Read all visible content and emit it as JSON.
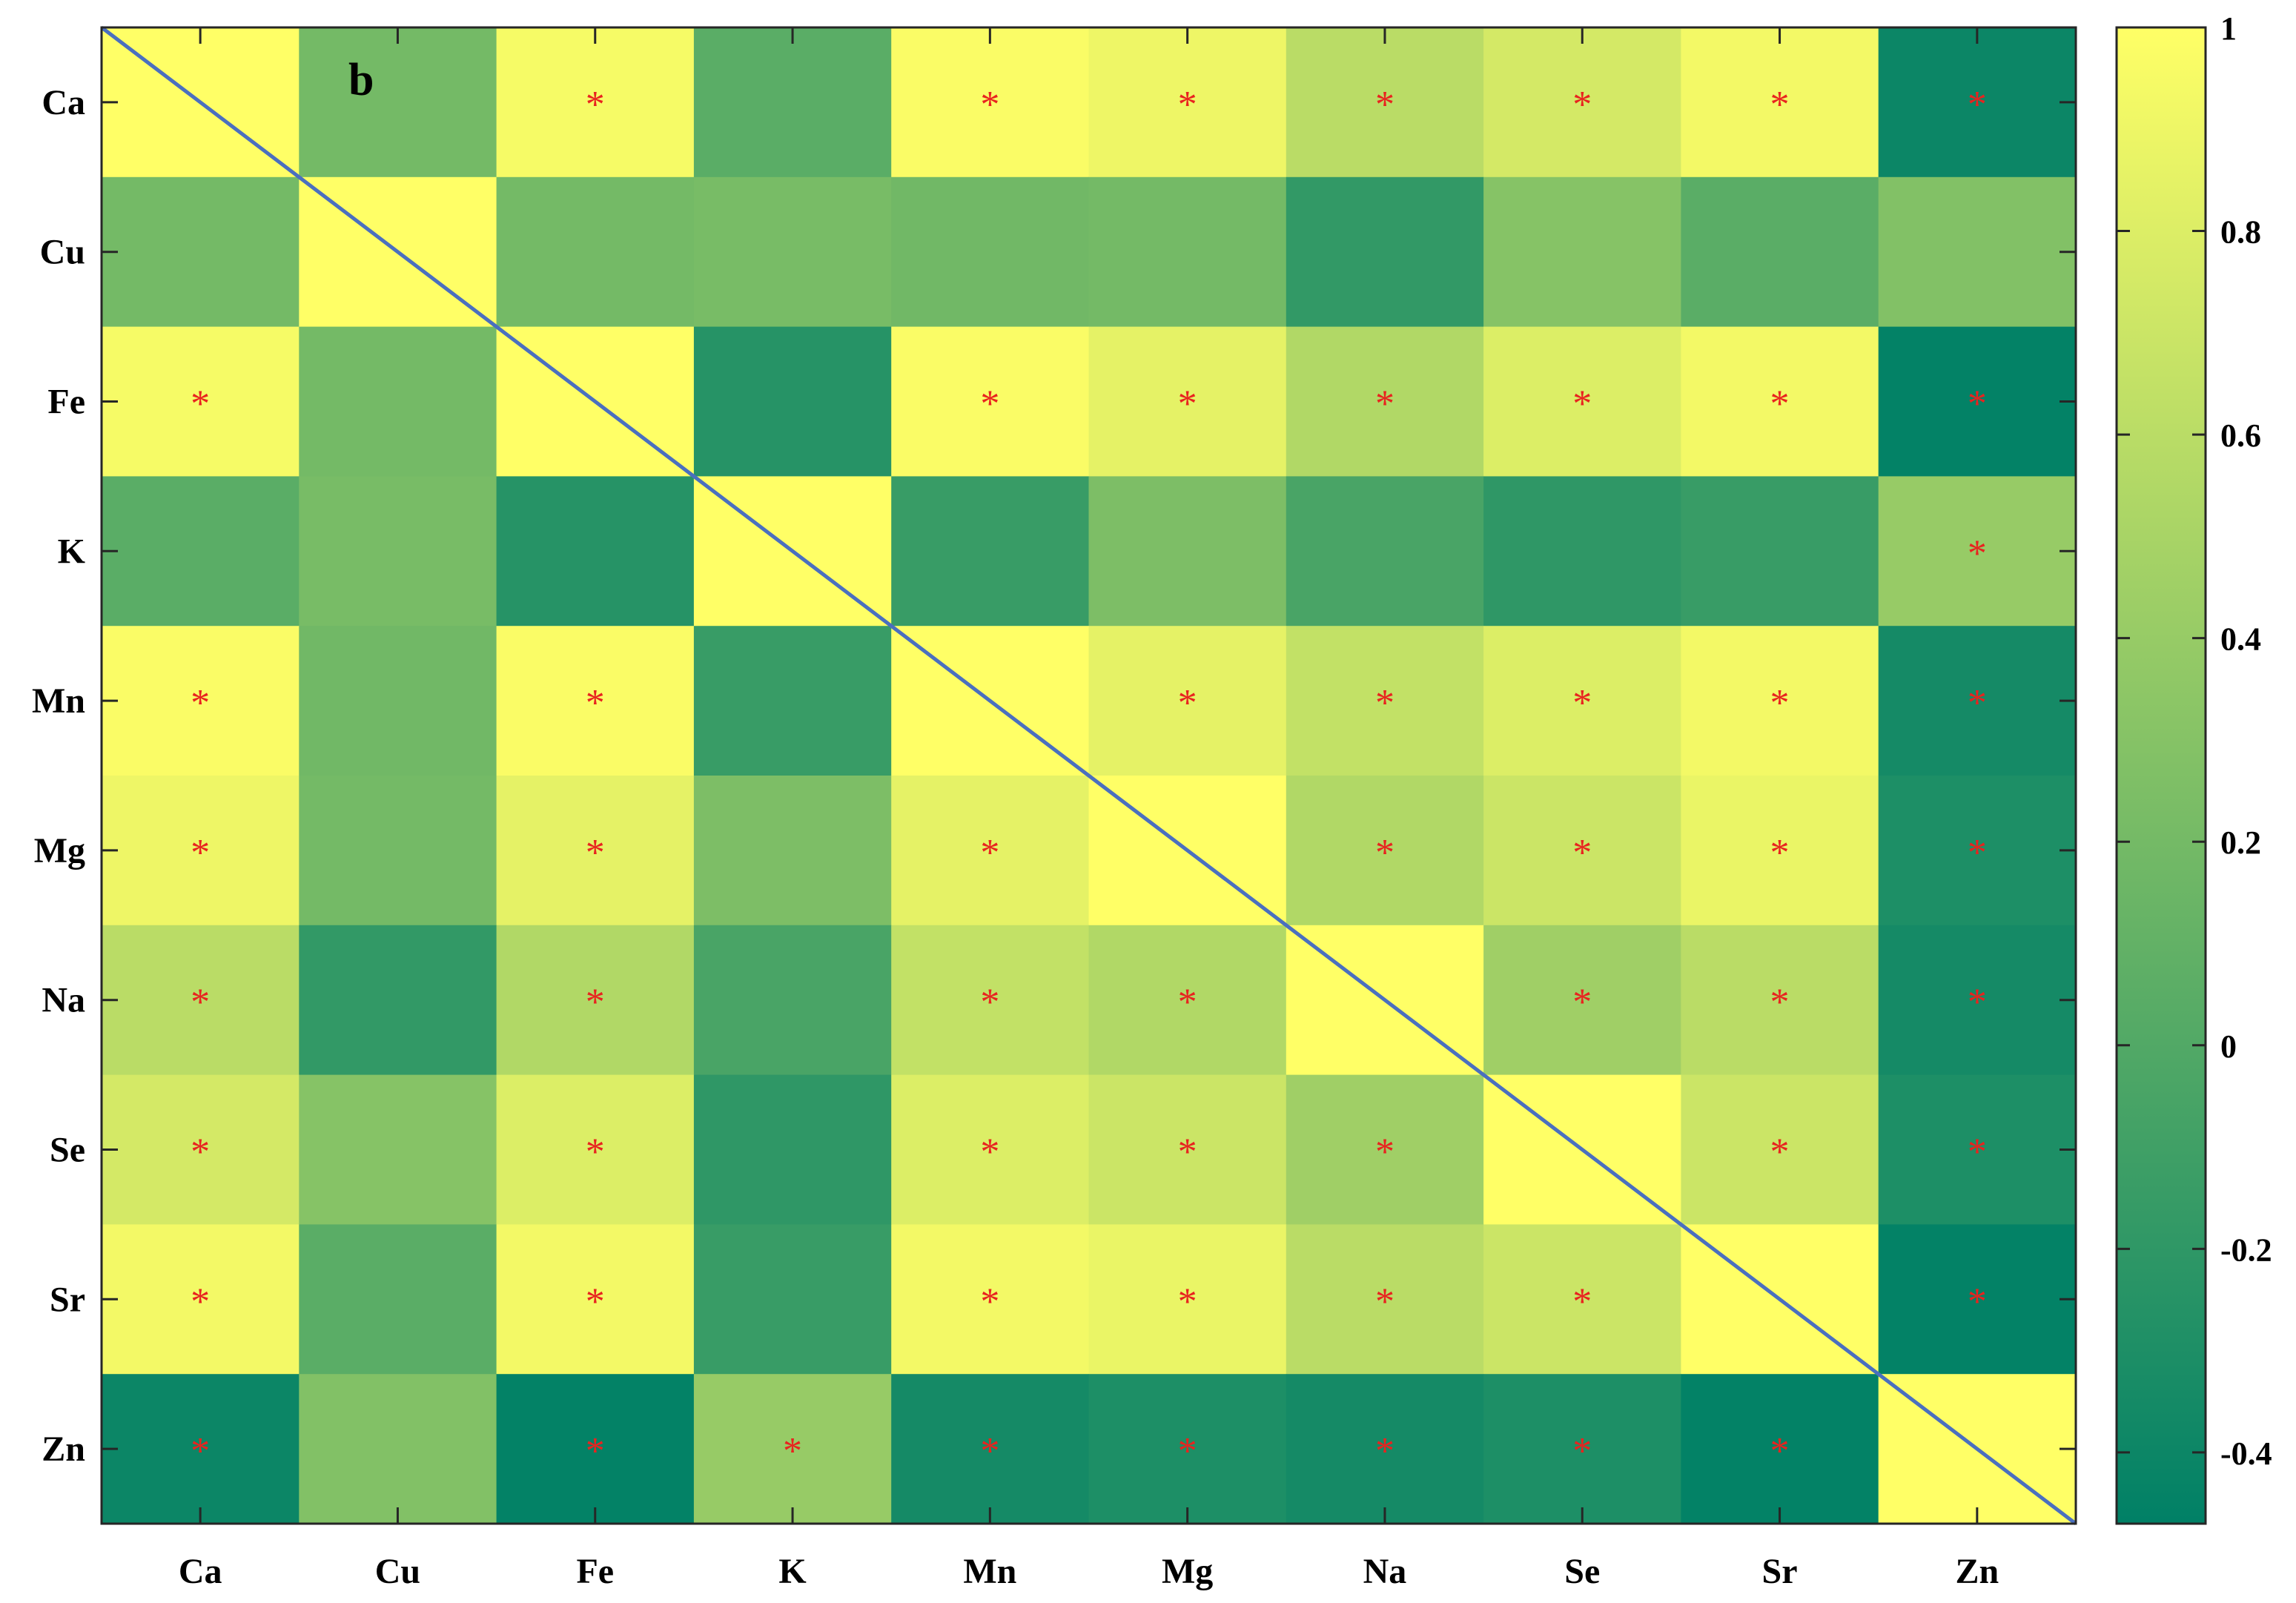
{
  "chart_data": {
    "type": "heatmap",
    "panel_label": "b",
    "x_labels": [
      "Ca",
      "Cu",
      "Fe",
      "K",
      "Mn",
      "Mg",
      "Na",
      "Se",
      "Sr",
      "Zn"
    ],
    "y_labels": [
      "Ca",
      "Cu",
      "Fe",
      "K",
      "Mn",
      "Mg",
      "Na",
      "Se",
      "Sr",
      "Zn"
    ],
    "values": [
      [
        1.0,
        0.2,
        0.95,
        0.05,
        0.97,
        0.9,
        0.6,
        0.75,
        0.93,
        -0.4
      ],
      [
        0.2,
        1.0,
        0.2,
        0.22,
        0.18,
        0.2,
        -0.18,
        0.3,
        0.05,
        0.28
      ],
      [
        0.95,
        0.2,
        1.0,
        -0.25,
        0.97,
        0.85,
        0.55,
        0.8,
        0.93,
        -0.45
      ],
      [
        0.05,
        0.22,
        -0.25,
        1.0,
        -0.15,
        0.25,
        -0.05,
        -0.2,
        -0.15,
        0.4
      ],
      [
        0.97,
        0.18,
        0.97,
        -0.15,
        1.0,
        0.85,
        0.65,
        0.8,
        0.93,
        -0.35
      ],
      [
        0.9,
        0.2,
        0.85,
        0.25,
        0.85,
        1.0,
        0.55,
        0.7,
        0.88,
        -0.3
      ],
      [
        0.6,
        -0.18,
        0.55,
        -0.05,
        0.65,
        0.55,
        1.0,
        0.45,
        0.6,
        -0.35
      ],
      [
        0.75,
        0.3,
        0.8,
        -0.2,
        0.8,
        0.7,
        0.45,
        1.0,
        0.7,
        -0.3
      ],
      [
        0.93,
        0.05,
        0.93,
        -0.15,
        0.93,
        0.88,
        0.6,
        0.7,
        1.0,
        -0.45
      ],
      [
        -0.4,
        0.28,
        -0.45,
        0.4,
        -0.35,
        -0.3,
        -0.35,
        -0.3,
        -0.45,
        1.0
      ]
    ],
    "significant": [
      [
        0,
        0,
        1,
        0,
        1,
        1,
        1,
        1,
        1,
        1
      ],
      [
        0,
        0,
        0,
        0,
        0,
        0,
        0,
        0,
        0,
        0
      ],
      [
        1,
        0,
        0,
        0,
        1,
        1,
        1,
        1,
        1,
        1
      ],
      [
        0,
        0,
        0,
        0,
        0,
        0,
        0,
        0,
        0,
        1
      ],
      [
        1,
        0,
        1,
        0,
        0,
        1,
        1,
        1,
        1,
        1
      ],
      [
        1,
        0,
        1,
        0,
        1,
        0,
        1,
        1,
        1,
        1
      ],
      [
        1,
        0,
        1,
        0,
        1,
        1,
        0,
        1,
        1,
        1
      ],
      [
        1,
        0,
        1,
        0,
        1,
        1,
        1,
        0,
        1,
        1
      ],
      [
        1,
        0,
        1,
        0,
        1,
        1,
        1,
        1,
        0,
        1
      ],
      [
        1,
        0,
        1,
        1,
        1,
        1,
        1,
        1,
        1,
        0
      ]
    ],
    "marker": "*",
    "marker_color": "#e8231f",
    "diagonal_line_color": "#4a6fbf",
    "colormap": "summer",
    "colormap_stops": [
      "#008066",
      "#ffff66"
    ],
    "color_range": [
      -0.47,
      1.0
    ],
    "colorbar": {
      "ticks": [
        1,
        0.8,
        0.6,
        0.4,
        0.2,
        0,
        -0.2,
        -0.4
      ],
      "tick_labels": [
        "1",
        "0.8",
        "0.6",
        "0.4",
        "0.2",
        "0",
        "-0.2",
        "-0.4"
      ]
    }
  }
}
